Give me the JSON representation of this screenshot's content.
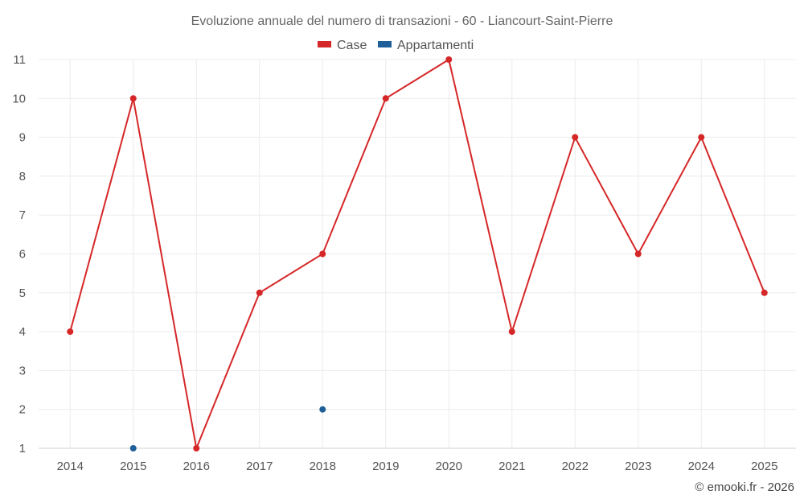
{
  "chart_data": {
    "type": "line",
    "title": "Evoluzione annuale del numero di transazioni - 60 - Liancourt-Saint-Pierre",
    "categories": [
      "2014",
      "2015",
      "2016",
      "2017",
      "2018",
      "2019",
      "2020",
      "2021",
      "2022",
      "2023",
      "2024",
      "2025"
    ],
    "series": [
      {
        "name": "Case",
        "color": "#d62728",
        "values": [
          4,
          10,
          1,
          5,
          6,
          10,
          11,
          4,
          9,
          6,
          9,
          5
        ]
      },
      {
        "name": "Appartamenti",
        "color": "#1f5f99",
        "values": [
          null,
          1,
          null,
          null,
          2,
          null,
          null,
          null,
          null,
          null,
          null,
          null
        ]
      }
    ],
    "ylim": [
      1,
      11
    ],
    "yticks": [
      "1",
      "2",
      "3",
      "4",
      "5",
      "6",
      "7",
      "8",
      "9",
      "10",
      "11"
    ],
    "grid": true,
    "legend_position": "top-center"
  },
  "footer": {
    "credit": "© emooki.fr - 2026"
  }
}
